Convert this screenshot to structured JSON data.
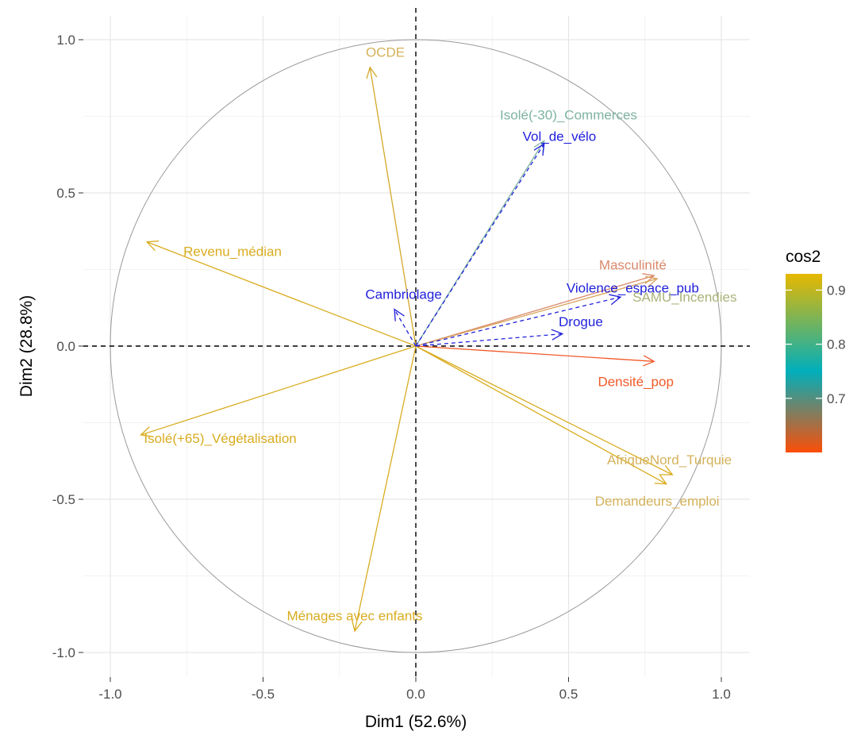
{
  "chart_data": {
    "type": "scatter",
    "subtype": "pca-variable-correlation-circle",
    "xlabel": "Dim1 (52.6%)",
    "ylabel": "Dim2 (28.8%)",
    "xlim": [
      -1.0,
      1.0
    ],
    "ylim": [
      -1.0,
      1.0
    ],
    "xticks": [
      "-1.0",
      "-0.5",
      "0.0",
      "0.5",
      "1.0"
    ],
    "yticks": [
      "-1.0",
      "-0.5",
      "0.0",
      "0.5",
      "1.0"
    ],
    "grid": true,
    "unit_circle": true,
    "legend": {
      "title": "cos2",
      "position": "right",
      "ticks": [
        "0.9",
        "0.8",
        "0.7"
      ],
      "tick_values": [
        0.9,
        0.8,
        0.7
      ],
      "range": [
        0.6,
        0.93
      ],
      "gradient": [
        {
          "value": 0.6,
          "color": "#FC4E07"
        },
        {
          "value": 0.75,
          "color": "#00AFBB"
        },
        {
          "value": 0.93,
          "color": "#E7B800"
        }
      ]
    },
    "active_variables": [
      {
        "name": "OCDE",
        "x": -0.15,
        "y": 0.91,
        "color": "#D4A82A"
      },
      {
        "name": "Isolé(-30)_Commerces",
        "x": 0.42,
        "y": 0.67,
        "color": "#7FB3A3"
      },
      {
        "name": "Revenu_médian",
        "x": -0.88,
        "y": 0.34,
        "color": "#D9AC1F"
      },
      {
        "name": "Masculinité",
        "x": 0.78,
        "y": 0.23,
        "color": "#D9896B"
      },
      {
        "name": "Violence_espace_pub",
        "x": 0.79,
        "y": 0.22,
        "color": "#D8A25A"
      },
      {
        "name": "Densité_pop",
        "x": 0.78,
        "y": -0.05,
        "color": "#F05A28"
      },
      {
        "name": "AfriqueNord_Turquie",
        "x": 0.84,
        "y": -0.42,
        "color": "#D9AC1F"
      },
      {
        "name": "Demandeurs_emploi",
        "x": 0.82,
        "y": -0.45,
        "color": "#D9AC1F"
      },
      {
        "name": "Isolé(+65)_Végétalisation",
        "x": -0.9,
        "y": -0.29,
        "color": "#D9AC1F"
      },
      {
        "name": "Ménages avec enfants",
        "x": -0.2,
        "y": -0.93,
        "color": "#D9AC1F"
      }
    ],
    "supplementary_variables": [
      {
        "name": "Vol_de_vélo",
        "x": 0.42,
        "y": 0.66,
        "color": "#1F1FDB"
      },
      {
        "name": "Cambriolage",
        "x": -0.07,
        "y": 0.12,
        "color": "#1F1FDB"
      },
      {
        "name": "SAMU_Incendies",
        "x": 0.67,
        "y": 0.16,
        "color": "#1F1FDB"
      },
      {
        "name": "Drogue",
        "x": 0.48,
        "y": 0.04,
        "color": "#1F1FDB"
      }
    ],
    "labels": [
      {
        "text": "OCDE",
        "x": -0.1,
        "y": 0.96,
        "color": "#D4B25A"
      },
      {
        "text": "Isolé(-30)_Commerces",
        "x": 0.5,
        "y": 0.755,
        "color": "#7FB3A3"
      },
      {
        "text": "Vol_de_vélo",
        "x": 0.47,
        "y": 0.685,
        "color": "#1F1FDB"
      },
      {
        "text": "Revenu_médian",
        "x": -0.6,
        "y": 0.31,
        "color": "#D9AC1F"
      },
      {
        "text": "Masculinité",
        "x": 0.71,
        "y": 0.265,
        "color": "#D9896B"
      },
      {
        "text": "Violence_espace_pub",
        "x": 0.71,
        "y": 0.19,
        "color": "#1F1FDB"
      },
      {
        "text": "SAMU_Incendies",
        "x": 0.88,
        "y": 0.16,
        "color": "#A8B37A"
      },
      {
        "text": "Cambriolage",
        "x": -0.04,
        "y": 0.17,
        "color": "#1F1FDB"
      },
      {
        "text": "Drogue",
        "x": 0.54,
        "y": 0.08,
        "color": "#1F1FDB"
      },
      {
        "text": "Densité_pop",
        "x": 0.72,
        "y": -0.115,
        "color": "#F05A28"
      },
      {
        "text": "AfriqueNord_Turquie",
        "x": 0.83,
        "y": -0.37,
        "color": "#D4B25A"
      },
      {
        "text": "Demandeurs_emploi",
        "x": 0.79,
        "y": -0.505,
        "color": "#D4B25A"
      },
      {
        "text": "Isolé(+65)_Végétalisation",
        "x": -0.64,
        "y": -0.3,
        "color": "#D9AC1F"
      },
      {
        "text": "Ménages avec enfants",
        "x": -0.2,
        "y": -0.88,
        "color": "#D9AC1F"
      }
    ]
  }
}
